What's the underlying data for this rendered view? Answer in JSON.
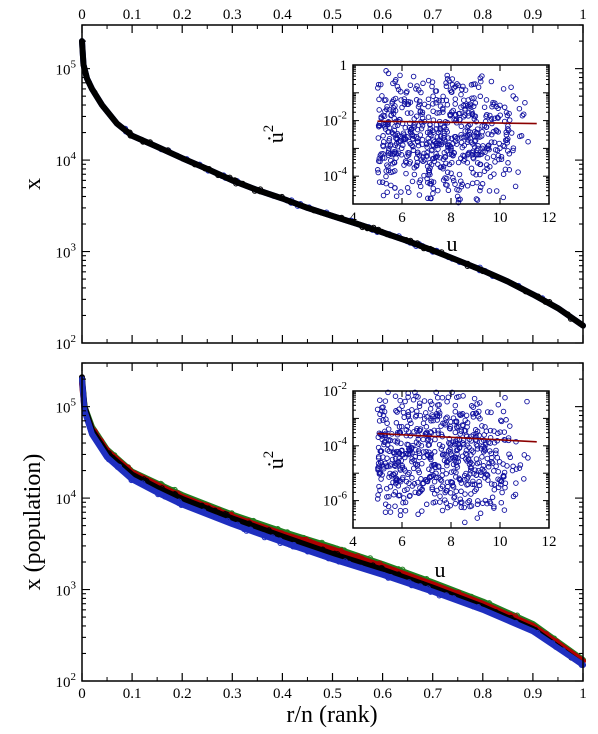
{
  "colors": {
    "black_series": "#000000",
    "blue_series": "#1f2fbf",
    "red_series": "#b00000",
    "green_series": "#208020",
    "inset_points": "#1010a0",
    "fit_line": "#8b0000"
  },
  "chart_data": [
    {
      "type": "scatter",
      "panel": "top",
      "xlabel": "",
      "ylabel": "x",
      "xlim": [
        0,
        1
      ],
      "ylim": [
        100,
        300000
      ],
      "yscale": "log",
      "x_ticks": [
        "0",
        "0.1",
        "0.2",
        "0.3",
        "0.4",
        "0.5",
        "0.6",
        "0.7",
        "0.8",
        "0.9",
        "1"
      ],
      "x_ticks_position": "top",
      "y_ticks": [
        {
          "base": "10",
          "exp": "2",
          "value": 100
        },
        {
          "base": "10",
          "exp": "3",
          "value": 1000
        },
        {
          "base": "10",
          "exp": "4",
          "value": 10000
        },
        {
          "base": "10",
          "exp": "5",
          "value": 100000
        }
      ],
      "grid": false,
      "series": [
        {
          "color": "blue_series",
          "points": [
            [
              0,
              200000
            ],
            [
              0.003,
              110000
            ],
            [
              0.01,
              78000
            ],
            [
              0.02,
              60000
            ],
            [
              0.04,
              40000
            ],
            [
              0.07,
              25000
            ],
            [
              0.1,
              18500
            ],
            [
              0.15,
              14000
            ],
            [
              0.2,
              10500
            ],
            [
              0.25,
              8000
            ],
            [
              0.3,
              6000
            ],
            [
              0.35,
              4700
            ],
            [
              0.4,
              3800
            ],
            [
              0.45,
              3000
            ],
            [
              0.5,
              2450
            ],
            [
              0.55,
              2000
            ],
            [
              0.6,
              1620
            ],
            [
              0.65,
              1300
            ],
            [
              0.7,
              1030
            ],
            [
              0.75,
              800
            ],
            [
              0.8,
              620
            ],
            [
              0.85,
              470
            ],
            [
              0.9,
              340
            ],
            [
              0.95,
              240
            ],
            [
              1.0,
              155
            ]
          ]
        },
        {
          "color": "black_series",
          "points": [
            [
              0,
              200000
            ],
            [
              0.003,
              110000
            ],
            [
              0.01,
              78000
            ],
            [
              0.02,
              60000
            ],
            [
              0.04,
              40000
            ],
            [
              0.07,
              25000
            ],
            [
              0.1,
              18500
            ],
            [
              0.15,
              14000
            ],
            [
              0.2,
              10500
            ],
            [
              0.25,
              8000
            ],
            [
              0.3,
              6000
            ],
            [
              0.35,
              4700
            ],
            [
              0.4,
              3800
            ],
            [
              0.45,
              3000
            ],
            [
              0.5,
              2450
            ],
            [
              0.55,
              2000
            ],
            [
              0.6,
              1620
            ],
            [
              0.65,
              1300
            ],
            [
              0.7,
              1030
            ],
            [
              0.75,
              800
            ],
            [
              0.8,
              620
            ],
            [
              0.85,
              470
            ],
            [
              0.9,
              340
            ],
            [
              0.95,
              240
            ],
            [
              1.0,
              155
            ]
          ]
        }
      ]
    },
    {
      "type": "scatter",
      "panel": "top-inset",
      "xlabel": "u",
      "ylabel": "u̇",
      "ylabel_superscript": "2",
      "xlim": [
        4,
        12
      ],
      "ylim": [
        1e-05,
        1
      ],
      "yscale": "log",
      "x_ticks": [
        "4",
        "6",
        "8",
        "10",
        "12"
      ],
      "y_ticks": [
        {
          "base": "1",
          "exp": "",
          "value": 1
        },
        {
          "base": "10",
          "exp": "-2",
          "value": 0.01
        },
        {
          "base": "10",
          "exp": "-4",
          "value": 0.0001
        }
      ],
      "fit_line": {
        "x": [
          5,
          11.5
        ],
        "y": [
          0.0095,
          0.0078
        ]
      },
      "scatter": {
        "n": 650,
        "x_range": [
          5,
          11.3
        ],
        "logy_center": -2.6,
        "logy_spread": 2.5
      }
    },
    {
      "type": "scatter",
      "panel": "bottom",
      "xlabel": "r/n (rank)",
      "ylabel": "x (population)",
      "xlim": [
        0,
        1
      ],
      "ylim": [
        100,
        300000
      ],
      "yscale": "log",
      "x_ticks": [
        "0",
        "0.1",
        "0.2",
        "0.3",
        "0.4",
        "0.5",
        "0.6",
        "0.7",
        "0.8",
        "0.9",
        "1"
      ],
      "x_ticks_position": "bottom",
      "y_ticks": [
        {
          "base": "10",
          "exp": "2",
          "value": 100
        },
        {
          "base": "10",
          "exp": "3",
          "value": 1000
        },
        {
          "base": "10",
          "exp": "4",
          "value": 10000
        },
        {
          "base": "10",
          "exp": "5",
          "value": 100000
        }
      ],
      "grid": false,
      "series": [
        {
          "color": "green_series",
          "points": [
            [
              0,
              190000
            ],
            [
              0.005,
              100000
            ],
            [
              0.02,
              60000
            ],
            [
              0.05,
              34000
            ],
            [
              0.1,
              19500
            ],
            [
              0.15,
              14500
            ],
            [
              0.2,
              10800
            ],
            [
              0.3,
              6600
            ],
            [
              0.4,
              4300
            ],
            [
              0.5,
              2900
            ],
            [
              0.6,
              1900
            ],
            [
              0.7,
              1200
            ],
            [
              0.8,
              740
            ],
            [
              0.9,
              420
            ],
            [
              1.0,
              170
            ]
          ]
        },
        {
          "color": "red_series",
          "points": [
            [
              0,
              180000
            ],
            [
              0.005,
              95000
            ],
            [
              0.02,
              57000
            ],
            [
              0.05,
              33000
            ],
            [
              0.1,
              19000
            ],
            [
              0.15,
              14000
            ],
            [
              0.2,
              10300
            ],
            [
              0.3,
              6300
            ],
            [
              0.4,
              4050
            ],
            [
              0.5,
              2750
            ],
            [
              0.6,
              1800
            ],
            [
              0.7,
              1140
            ],
            [
              0.8,
              700
            ],
            [
              0.9,
              400
            ],
            [
              1.0,
              165
            ]
          ]
        },
        {
          "color": "black_series",
          "points": [
            [
              0,
              210000
            ],
            [
              0.005,
              100000
            ],
            [
              0.02,
              55000
            ],
            [
              0.05,
              31000
            ],
            [
              0.1,
              18000
            ],
            [
              0.15,
              13000
            ],
            [
              0.2,
              9800
            ],
            [
              0.3,
              6000
            ],
            [
              0.4,
              3800
            ],
            [
              0.5,
              2450
            ],
            [
              0.6,
              1650
            ],
            [
              0.7,
              1050
            ],
            [
              0.8,
              650
            ],
            [
              0.9,
              370
            ],
            [
              1.0,
              150
            ]
          ]
        },
        {
          "color": "blue_series",
          "points": [
            [
              0,
              200000
            ],
            [
              0.005,
              90000
            ],
            [
              0.02,
              50000
            ],
            [
              0.05,
              28000
            ],
            [
              0.1,
              16000
            ],
            [
              0.15,
              11500
            ],
            [
              0.2,
              8500
            ],
            [
              0.3,
              5200
            ],
            [
              0.4,
              3300
            ],
            [
              0.5,
              2150
            ],
            [
              0.6,
              1450
            ],
            [
              0.7,
              950
            ],
            [
              0.8,
              600
            ],
            [
              0.9,
              350
            ],
            [
              1.0,
              150
            ]
          ]
        }
      ]
    },
    {
      "type": "scatter",
      "panel": "bottom-inset",
      "xlabel": "u",
      "ylabel": "u̇",
      "ylabel_superscript": "2",
      "xlim": [
        4,
        12
      ],
      "ylim": [
        1e-07,
        0.01
      ],
      "yscale": "log",
      "x_ticks": [
        "4",
        "6",
        "8",
        "10",
        "12"
      ],
      "y_ticks": [
        {
          "base": "10",
          "exp": "-2",
          "value": 0.01
        },
        {
          "base": "10",
          "exp": "-4",
          "value": 0.0001
        },
        {
          "base": "10",
          "exp": "-6",
          "value": 1e-06
        }
      ],
      "fit_line": {
        "x": [
          5,
          11.5
        ],
        "y": [
          0.00028,
          0.00014
        ]
      },
      "scatter": {
        "n": 650,
        "x_range": [
          5,
          11.3
        ],
        "logy_center": -4.3,
        "logy_spread": 2.6
      }
    }
  ]
}
